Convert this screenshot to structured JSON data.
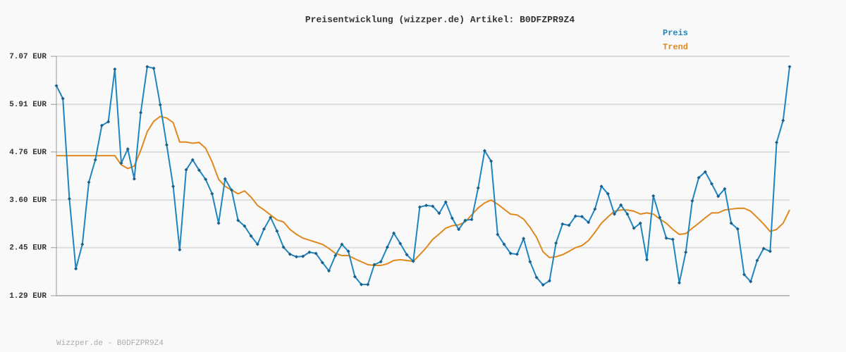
{
  "chart_data": {
    "type": "line",
    "title": "Preisentwicklung (wizzper.de) Artikel: B0DFZPR9Z4",
    "footer": "Wizzper.de - B0DFZPR9Z4",
    "ylim": [
      1.29,
      7.07
    ],
    "yticks": [
      {
        "value": 1.29,
        "label": "1.29 EUR"
      },
      {
        "value": 2.45,
        "label": "2.45 EUR"
      },
      {
        "value": 3.6,
        "label": "3.60 EUR"
      },
      {
        "value": 4.76,
        "label": "4.76 EUR"
      },
      {
        "value": 5.91,
        "label": "5.91 EUR"
      },
      {
        "value": 7.07,
        "label": "7.07 EUR"
      }
    ],
    "grid": true,
    "legend": "top-right",
    "series": [
      {
        "name": "Preis",
        "color": "#1f85bf",
        "markers": true,
        "values": [
          6.36,
          6.05,
          3.63,
          1.94,
          2.53,
          4.03,
          4.57,
          5.4,
          5.49,
          6.76,
          4.49,
          4.83,
          4.11,
          5.71,
          6.82,
          6.78,
          5.9,
          4.93,
          3.93,
          2.4,
          4.33,
          4.57,
          4.32,
          4.1,
          3.75,
          3.04,
          4.11,
          3.84,
          3.11,
          2.97,
          2.73,
          2.53,
          2.9,
          3.18,
          2.85,
          2.46,
          2.29,
          2.23,
          2.24,
          2.34,
          2.31,
          2.09,
          1.89,
          2.26,
          2.53,
          2.36,
          1.75,
          1.56,
          1.56,
          2.04,
          2.11,
          2.46,
          2.8,
          2.55,
          2.28,
          2.12,
          3.43,
          3.47,
          3.45,
          3.28,
          3.55,
          3.16,
          2.89,
          3.11,
          3.13,
          3.89,
          4.79,
          4.54,
          2.77,
          2.53,
          2.31,
          2.29,
          2.67,
          2.11,
          1.73,
          1.55,
          1.65,
          2.56,
          3.02,
          2.99,
          3.21,
          3.2,
          3.06,
          3.38,
          3.93,
          3.75,
          3.26,
          3.48,
          3.26,
          2.92,
          3.04,
          2.16,
          3.7,
          3.18,
          2.68,
          2.65,
          1.6,
          2.34,
          3.58,
          4.14,
          4.28,
          3.99,
          3.69,
          3.87,
          3.04,
          2.9,
          1.8,
          1.63,
          2.14,
          2.43,
          2.36,
          4.99,
          5.52,
          6.82
        ]
      },
      {
        "name": "Trend",
        "color": "#e0881f",
        "markers": false,
        "values": [
          4.67,
          4.67,
          4.67,
          4.67,
          4.67,
          4.67,
          4.67,
          4.67,
          4.67,
          4.67,
          4.45,
          4.36,
          4.42,
          4.8,
          5.25,
          5.5,
          5.62,
          5.58,
          5.47,
          5.0,
          5.0,
          4.97,
          4.99,
          4.85,
          4.52,
          4.1,
          3.93,
          3.84,
          3.75,
          3.82,
          3.67,
          3.47,
          3.36,
          3.24,
          3.12,
          3.07,
          2.89,
          2.77,
          2.68,
          2.63,
          2.58,
          2.53,
          2.43,
          2.31,
          2.26,
          2.26,
          2.18,
          2.11,
          2.04,
          2.02,
          2.02,
          2.06,
          2.14,
          2.16,
          2.14,
          2.12,
          2.28,
          2.45,
          2.65,
          2.78,
          2.92,
          2.98,
          3.0,
          3.07,
          3.24,
          3.41,
          3.53,
          3.6,
          3.5,
          3.38,
          3.26,
          3.24,
          3.14,
          2.94,
          2.7,
          2.35,
          2.21,
          2.23,
          2.28,
          2.36,
          2.45,
          2.5,
          2.62,
          2.82,
          3.04,
          3.19,
          3.33,
          3.36,
          3.36,
          3.33,
          3.26,
          3.29,
          3.26,
          3.14,
          3.04,
          2.89,
          2.77,
          2.79,
          2.92,
          3.04,
          3.17,
          3.29,
          3.29,
          3.36,
          3.38,
          3.4,
          3.4,
          3.33,
          3.18,
          3.02,
          2.84,
          2.89,
          3.04,
          3.36
        ]
      }
    ]
  }
}
